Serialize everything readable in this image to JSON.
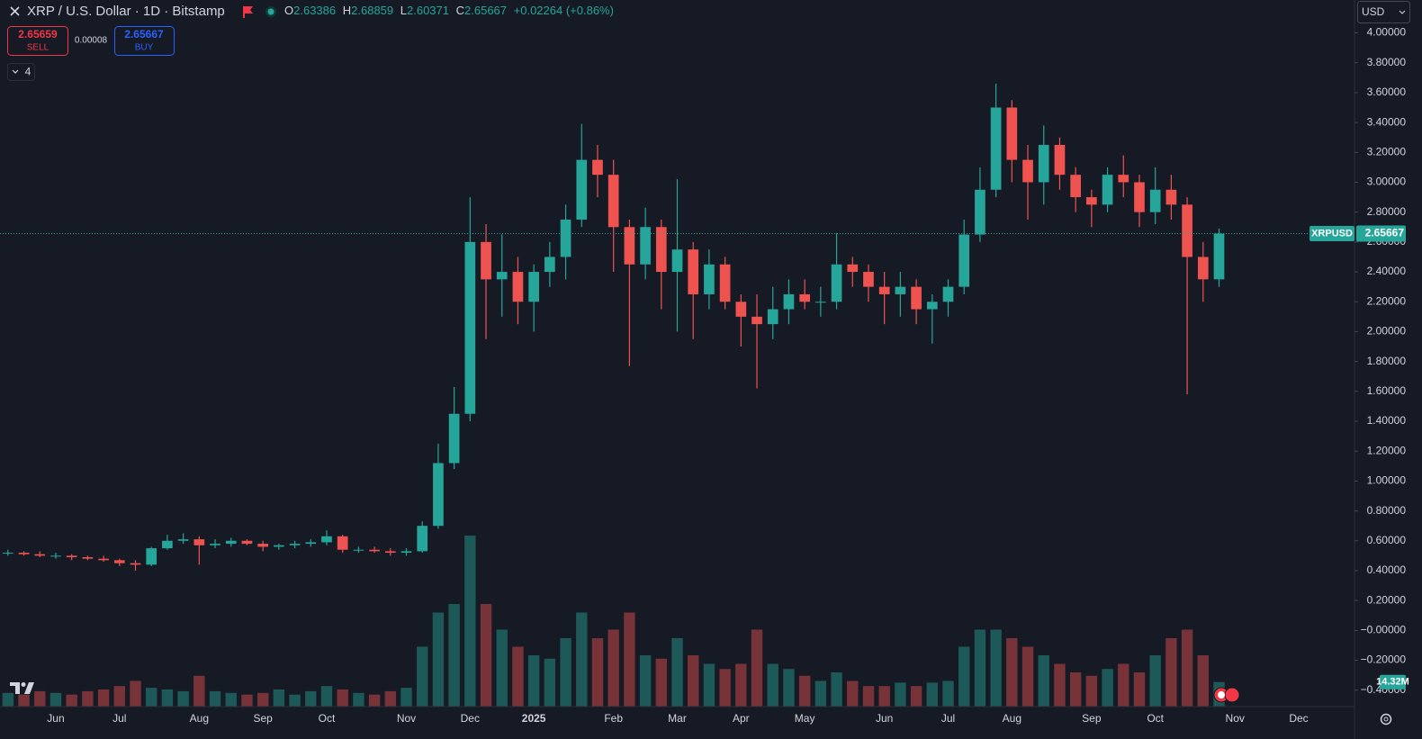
{
  "chart_data": {
    "type": "candlestick",
    "title": "XRP / U.S. Dollar · 1D · Bitstamp",
    "categories": [
      null,
      null,
      null,
      "Jun",
      null,
      null,
      null,
      "Jul",
      null,
      null,
      null,
      null,
      "Aug",
      null,
      null,
      null,
      "Sep",
      null,
      null,
      null,
      "Oct",
      null,
      null,
      null,
      null,
      "Nov",
      null,
      null,
      null,
      "Dec",
      null,
      null,
      null,
      "2025",
      null,
      null,
      null,
      null,
      "Feb",
      null,
      null,
      null,
      "Mar",
      null,
      null,
      null,
      "Apr",
      null,
      null,
      null,
      "May",
      null,
      null,
      null,
      null,
      "Jun",
      null,
      null,
      null,
      "Jul",
      null,
      null,
      null,
      "Aug",
      null,
      null,
      null,
      null,
      "Sep",
      null,
      null,
      null,
      "Oct",
      null,
      null,
      null,
      null,
      "Nov",
      null,
      null,
      null,
      "Dec",
      null,
      null,
      null
    ],
    "open": [
      0.52,
      0.52,
      0.51,
      0.5,
      0.5,
      0.49,
      0.48,
      0.47,
      0.45,
      0.44,
      0.55,
      0.6,
      0.61,
      0.57,
      0.58,
      0.6,
      0.58,
      0.56,
      0.57,
      0.58,
      0.59,
      0.63,
      0.54,
      0.54,
      0.53,
      0.52,
      0.53,
      0.7,
      1.12,
      1.45,
      2.6,
      2.35,
      2.4,
      2.2,
      2.4,
      2.5,
      2.75,
      3.15,
      3.05,
      2.7,
      2.45,
      2.7,
      2.4,
      2.55,
      2.25,
      2.45,
      2.2,
      2.1,
      2.05,
      2.15,
      2.25,
      2.2,
      2.2,
      2.45,
      2.4,
      2.3,
      2.25,
      2.3,
      2.15,
      2.2,
      2.3,
      2.65,
      2.95,
      3.5,
      3.15,
      3.0,
      3.25,
      3.05,
      2.9,
      2.85,
      3.05,
      3.0,
      2.8,
      2.95,
      2.85,
      2.5,
      2.35,
      null,
      null,
      null,
      null,
      null,
      null,
      null,
      null
    ],
    "high": [
      0.54,
      0.53,
      0.53,
      0.52,
      0.51,
      0.5,
      0.5,
      0.48,
      0.47,
      0.56,
      0.64,
      0.65,
      0.63,
      0.61,
      0.62,
      0.61,
      0.6,
      0.58,
      0.6,
      0.61,
      0.67,
      0.64,
      0.56,
      0.56,
      0.55,
      0.55,
      0.73,
      1.25,
      1.63,
      2.9,
      2.72,
      2.65,
      2.5,
      2.45,
      2.6,
      2.85,
      3.39,
      3.25,
      3.15,
      2.75,
      2.83,
      2.75,
      3.02,
      2.6,
      2.55,
      2.5,
      2.25,
      2.25,
      2.3,
      2.35,
      2.35,
      2.3,
      2.66,
      2.5,
      2.45,
      2.4,
      2.4,
      2.35,
      2.25,
      2.35,
      2.75,
      3.1,
      3.66,
      3.55,
      3.25,
      3.38,
      3.3,
      3.1,
      2.95,
      3.1,
      3.18,
      3.05,
      3.1,
      3.05,
      2.9,
      2.6,
      2.69,
      null,
      null,
      null,
      null,
      null,
      null,
      null,
      null
    ],
    "low": [
      0.5,
      0.5,
      0.49,
      0.48,
      0.47,
      0.47,
      0.46,
      0.43,
      0.4,
      0.43,
      0.54,
      0.58,
      0.44,
      0.55,
      0.56,
      0.57,
      0.53,
      0.54,
      0.55,
      0.56,
      0.57,
      0.52,
      0.52,
      0.52,
      0.5,
      0.5,
      0.52,
      0.68,
      1.08,
      1.4,
      1.95,
      2.1,
      2.05,
      2.0,
      2.3,
      2.35,
      2.7,
      2.9,
      2.4,
      1.77,
      2.35,
      2.15,
      2.0,
      1.95,
      2.15,
      2.15,
      1.9,
      1.62,
      1.95,
      2.05,
      2.15,
      2.1,
      2.15,
      2.3,
      2.2,
      2.05,
      2.1,
      2.05,
      1.92,
      2.1,
      2.25,
      2.6,
      2.9,
      3.0,
      2.75,
      2.85,
      2.95,
      2.8,
      2.7,
      2.8,
      2.9,
      2.7,
      2.72,
      2.75,
      1.58,
      2.2,
      2.3,
      null,
      null,
      null,
      null,
      null,
      null,
      null,
      null
    ],
    "close": [
      0.52,
      0.51,
      0.5,
      0.5,
      0.49,
      0.48,
      0.47,
      0.45,
      0.44,
      0.55,
      0.6,
      0.61,
      0.57,
      0.58,
      0.6,
      0.58,
      0.56,
      0.57,
      0.58,
      0.59,
      0.63,
      0.54,
      0.54,
      0.53,
      0.52,
      0.53,
      0.7,
      1.12,
      1.45,
      2.6,
      2.35,
      2.4,
      2.2,
      2.4,
      2.5,
      2.75,
      3.15,
      3.05,
      2.7,
      2.45,
      2.7,
      2.4,
      2.55,
      2.25,
      2.45,
      2.2,
      2.1,
      2.05,
      2.15,
      2.25,
      2.2,
      2.2,
      2.45,
      2.4,
      2.3,
      2.25,
      2.3,
      2.15,
      2.2,
      2.3,
      2.65,
      2.95,
      3.5,
      3.15,
      3.0,
      3.25,
      3.05,
      2.9,
      2.85,
      3.05,
      3.0,
      2.8,
      2.95,
      2.85,
      2.5,
      2.35,
      2.65667,
      null,
      null,
      null,
      null,
      null,
      null,
      null,
      null
    ],
    "volume": [
      8,
      7,
      9,
      8,
      7,
      9,
      10,
      12,
      15,
      11,
      10,
      9,
      18,
      9,
      8,
      7,
      8,
      10,
      7,
      9,
      12,
      10,
      8,
      7,
      9,
      11,
      35,
      55,
      60,
      100,
      60,
      45,
      35,
      30,
      28,
      40,
      55,
      40,
      45,
      55,
      30,
      28,
      40,
      30,
      25,
      22,
      25,
      45,
      25,
      22,
      18,
      15,
      20,
      15,
      12,
      12,
      14,
      12,
      14,
      15,
      35,
      45,
      45,
      40,
      35,
      30,
      25,
      20,
      18,
      22,
      25,
      20,
      30,
      40,
      45,
      30,
      14.32,
      null,
      null,
      null,
      null,
      null,
      null,
      null,
      null
    ],
    "volume_label": "14.32M",
    "up_color": "#26a69a",
    "down_color": "#ef5350",
    "ylim": [
      -0.51,
      4.22
    ],
    "yticks": [
      {
        "value": 4.0,
        "label": "4.00000"
      },
      {
        "value": 3.8,
        "label": "3.80000"
      },
      {
        "value": 3.6,
        "label": "3.60000"
      },
      {
        "value": 3.4,
        "label": "3.40000"
      },
      {
        "value": 3.2,
        "label": "3.20000"
      },
      {
        "value": 3.0,
        "label": "3.00000"
      },
      {
        "value": 2.8,
        "label": "2.80000"
      },
      {
        "value": 2.6,
        "label": "2.60000"
      },
      {
        "value": 2.4,
        "label": "2.40000"
      },
      {
        "value": 2.2,
        "label": "2.20000"
      },
      {
        "value": 2.0,
        "label": "2.00000"
      },
      {
        "value": 1.8,
        "label": "1.80000"
      },
      {
        "value": 1.6,
        "label": "1.60000"
      },
      {
        "value": 1.4,
        "label": "1.40000"
      },
      {
        "value": 1.2,
        "label": "1.20000"
      },
      {
        "value": 1.0,
        "label": "1.00000"
      },
      {
        "value": 0.8,
        "label": "0.80000"
      },
      {
        "value": 0.6,
        "label": "0.60000"
      },
      {
        "value": 0.4,
        "label": "0.40000"
      },
      {
        "value": 0.2,
        "label": "0.20000"
      },
      {
        "value": 0,
        "label": "−0.00000"
      },
      {
        "value": -0.2,
        "label": "−0.20000"
      },
      {
        "value": -0.4,
        "label": "−0.40000"
      }
    ],
    "grid": false
  },
  "ui": {
    "ohlc": [
      {
        "key": "O",
        "value": "2.63386"
      },
      {
        "key": "H",
        "value": "2.68859"
      },
      {
        "key": "L",
        "value": "2.60371"
      },
      {
        "key": "C",
        "value": "2.65667"
      }
    ],
    "change": "+0.02264 (+0.86%)",
    "sell_price": "2.65659",
    "sell": "SELL",
    "spread": "0.00008",
    "buy_price": "2.65667",
    "buy": "BUY",
    "indicators_count": "4",
    "currency": "USD",
    "symbol_tag": "XRPUSD"
  }
}
